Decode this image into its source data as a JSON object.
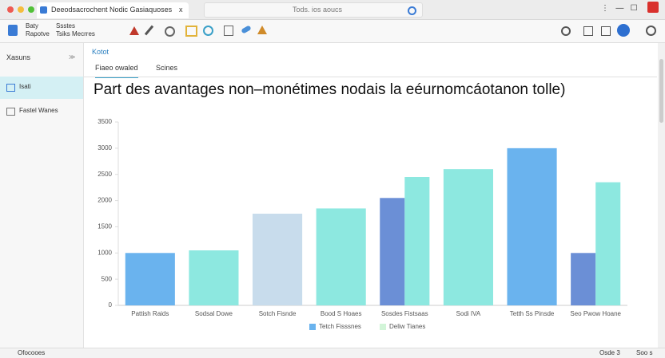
{
  "window": {
    "tab_title": "Deeodsacrochent Nodic Gasiaquoses",
    "tab_close": "x",
    "address": "Tods. ios aoucs"
  },
  "toolbar": {
    "file_line1": "Baty",
    "file_line2": "Rapotve",
    "edit_line1": "Ssstes",
    "edit_line2": "Tsiks Mecrres"
  },
  "sidebar": {
    "title": "Xasuns",
    "items": [
      "Isati",
      "Fastel Wanes"
    ]
  },
  "breadcrumb": "Kotot",
  "tabs": [
    "Fiaeo owaled",
    "Scines"
  ],
  "status": {
    "left": "Ofocooes",
    "right1": "Osde 3",
    "right2": "Soo s"
  },
  "chart_data": {
    "type": "bar",
    "title": "Part des avantages non–monétimes nodais la eéurnomcáotanon tolle)",
    "categories": [
      "Pattish Raids",
      "Sodsal Dowe",
      "Sotch Fisnde",
      "Bood S Hoaes",
      "Sosdes Fistsaas",
      "Sodi IVA",
      "Tetth Ss Pinsde",
      "Seo Pwow Hoane"
    ],
    "series": [
      {
        "name": "Tetch Fisssnes",
        "color": "#6ab3ee",
        "colors": [
          "#6ab3ee",
          null,
          "#c8dcec",
          null,
          "#6b8fd6",
          null,
          "#6ab3ee",
          "#6b8fd6"
        ],
        "values": [
          1000,
          null,
          1750,
          null,
          2050,
          null,
          3000,
          1000
        ]
      },
      {
        "name": "Deliw Tianes",
        "color": "#d2f5d8",
        "colors": [
          null,
          "#8de8e0",
          null,
          "#8de8e0",
          "#8de8e0",
          "#8de8e0",
          null,
          "#8de8e0"
        ],
        "values": [
          null,
          1050,
          null,
          1850,
          2450,
          2600,
          null,
          2350
        ]
      }
    ],
    "ylim": [
      0,
      3500
    ],
    "yticks": [
      0,
      500,
      1000,
      1500,
      2000,
      2500,
      3000,
      3500
    ],
    "grid": false
  }
}
